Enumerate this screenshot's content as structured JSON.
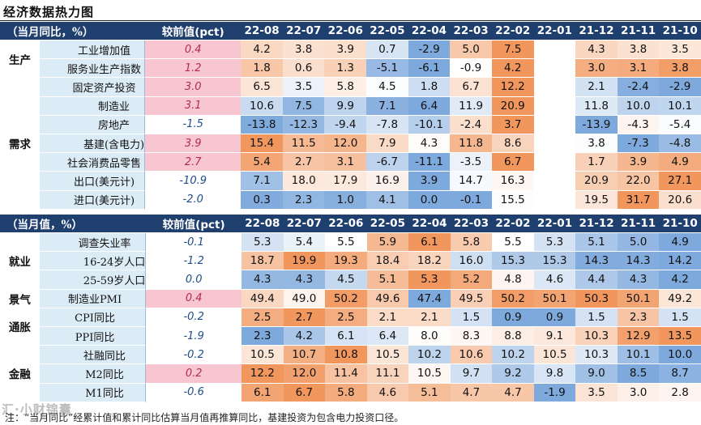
{
  "title": "经济数据热力图",
  "months": [
    "22-08",
    "22-07",
    "22-06",
    "22-05",
    "22-04",
    "22-03",
    "22-02",
    "22-01",
    "21-12",
    "21-11",
    "21-10"
  ],
  "section1": {
    "header_label": "（当月同比，%）",
    "prev_header": "较前值(pct)",
    "groups": [
      {
        "name": "生产",
        "rows": [
          {
            "label": "工业增加值",
            "indent": 1,
            "prev": "0.4",
            "values": [
              "4.2",
              "3.8",
              "3.9",
              "0.7",
              "-2.9",
              "5.0",
              "7.5",
              "",
              "4.3",
              "3.8",
              "3.5"
            ]
          },
          {
            "label": "服务业生产指数",
            "indent": 1,
            "prev": "1.2",
            "values": [
              "1.8",
              "0.6",
              "1.3",
              "-5.1",
              "-6.1",
              "-0.9",
              "4.2",
              "",
              "3.0",
              "3.1",
              "3.8"
            ]
          }
        ]
      },
      {
        "name": "需求",
        "rows": [
          {
            "label": "固定资产投资",
            "indent": 1,
            "prev": "3.0",
            "values": [
              "6.5",
              "3.5",
              "5.8",
              "4.5",
              "1.8",
              "6.7",
              "12.2",
              "",
              "2.1",
              "-2.4",
              "-2.9"
            ]
          },
          {
            "label": "制造业",
            "indent": 2,
            "prev": "3.1",
            "values": [
              "10.6",
              "7.5",
              "9.9",
              "7.1",
              "6.4",
              "11.9",
              "20.9",
              "",
              "11.8",
              "10.0",
              "10.1"
            ]
          },
          {
            "label": "房地产",
            "indent": 2,
            "prev": "-1.5",
            "values": [
              "-13.8",
              "-12.3",
              "-9.4",
              "-7.8",
              "-10.1",
              "-2.4",
              "3.7",
              "",
              "-13.9",
              "-4.3",
              "-5.4"
            ]
          },
          {
            "label": "基建(含电力)",
            "indent": 2,
            "prev": "3.9",
            "values": [
              "15.4",
              "11.5",
              "12.0",
              "7.9",
              "4.3",
              "11.8",
              "8.6",
              "",
              "3.8",
              "-7.3",
              "-4.8"
            ]
          },
          {
            "label": "社会消费品零售",
            "indent": 1,
            "prev": "2.7",
            "values": [
              "5.4",
              "2.7",
              "3.1",
              "-6.7",
              "-11.1",
              "-3.5",
              "6.7",
              "",
              "1.7",
              "3.9",
              "4.9"
            ]
          },
          {
            "label": "出口(美元计)",
            "indent": 1,
            "prev": "-10.9",
            "values": [
              "7.1",
              "18.0",
              "17.9",
              "16.9",
              "3.9",
              "14.7",
              "16.3",
              "",
              "20.9",
              "22.0",
              "27.1"
            ]
          },
          {
            "label": "进口(美元计)",
            "indent": 1,
            "prev": "-2.0",
            "values": [
              "0.3",
              "2.3",
              "1.0",
              "4.1",
              "0.0",
              "-0.1",
              "15.5",
              "",
              "19.5",
              "31.7",
              "20.6"
            ]
          }
        ]
      }
    ]
  },
  "section2": {
    "header_label": "（当月值，%）",
    "prev_header": "较前值(pct)",
    "groups": [
      {
        "name": "就业",
        "rows": [
          {
            "label": "调查失业率",
            "indent": 1,
            "prev": "-0.1",
            "values": [
              "5.3",
              "5.4",
              "5.5",
              "5.9",
              "6.1",
              "5.8",
              "5.5",
              "5.3",
              "5.1",
              "5.0",
              "4.9"
            ]
          },
          {
            "label": "16-24岁人口",
            "indent": 2,
            "prev": "-1.2",
            "values": [
              "18.7",
              "19.9",
              "19.3",
              "18.4",
              "18.2",
              "16.0",
              "15.3",
              "15.3",
              "14.3",
              "14.3",
              "14.2"
            ]
          },
          {
            "label": "25-59岁人口",
            "indent": 2,
            "prev": "0.0",
            "values": [
              "4.3",
              "4.3",
              "4.5",
              "5.1",
              "5.3",
              "5.2",
              "4.8",
              "4.6",
              "4.4",
              "4.3",
              "4.2"
            ]
          }
        ]
      },
      {
        "name": "景气",
        "rows": [
          {
            "label": "制造业PMI",
            "indent": 0,
            "prev": "0.4",
            "values": [
              "49.4",
              "49.0",
              "50.2",
              "49.6",
              "47.4",
              "49.5",
              "50.2",
              "50.1",
              "50.3",
              "50.1",
              "49.2"
            ]
          }
        ]
      },
      {
        "name": "通胀",
        "rows": [
          {
            "label": "CPI同比",
            "indent": 0,
            "prev": "-0.2",
            "values": [
              "2.5",
              "2.7",
              "2.5",
              "2.1",
              "2.1",
              "1.5",
              "0.9",
              "0.9",
              "1.5",
              "2.3",
              "1.5"
            ]
          },
          {
            "label": "PPI同比",
            "indent": 0,
            "prev": "-1.9",
            "values": [
              "2.3",
              "4.2",
              "6.1",
              "6.4",
              "8.0",
              "8.3",
              "8.8",
              "9.1",
              "10.3",
              "12.9",
              "13.5"
            ]
          }
        ]
      },
      {
        "name": "金融",
        "rows": [
          {
            "label": "社融同比",
            "indent": 1,
            "prev": "-0.2",
            "values": [
              "10.5",
              "10.7",
              "10.8",
              "10.5",
              "10.2",
              "10.6",
              "10.2",
              "10.5",
              "10.3",
              "10.1",
              "10.0"
            ]
          },
          {
            "label": "M2同比",
            "indent": 1,
            "prev": "0.2",
            "values": [
              "12.2",
              "12.0",
              "11.4",
              "11.1",
              "10.5",
              "9.7",
              "9.2",
              "9.8",
              "9.0",
              "8.5",
              "8.7"
            ]
          },
          {
            "label": "M1同比",
            "indent": 1,
            "prev": "-0.6",
            "values": [
              "6.1",
              "6.7",
              "5.8",
              "4.6",
              "5.1",
              "4.7",
              "4.7",
              "-1.9",
              "3.5",
              "3.0",
              "2.8"
            ]
          }
        ]
      }
    ]
  },
  "footnote": "注：“当月同比”经累计值和累计同比估算当月值再推算同比，基建投资为包含电力投资口径。",
  "watermark": "汇·小财锦囊",
  "colors": {
    "header_bg": "#1f3f6e",
    "label_bg": "#dcecf7",
    "prev_pos_bg": "#f7c6d0",
    "heat_high": "#ef8a4a",
    "heat_mid": "#ffffff",
    "heat_low": "#6f9fd8"
  }
}
